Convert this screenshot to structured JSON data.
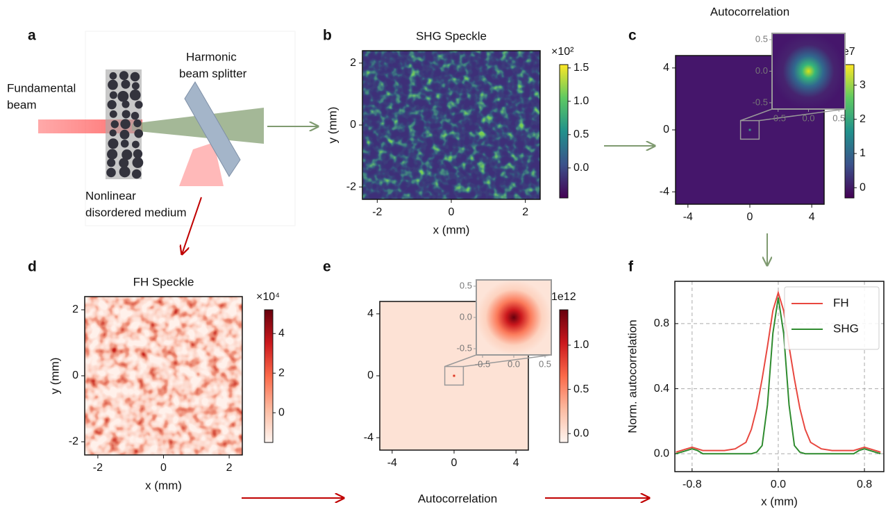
{
  "panel_labels": [
    "a",
    "b",
    "c",
    "d",
    "e",
    "f"
  ],
  "diagram": {
    "fundamental_beam": [
      "Fundamental",
      "beam"
    ],
    "beam_splitter": [
      "Harmonic",
      "beam splitter"
    ],
    "medium": [
      "Nonlinear",
      "disordered medium"
    ]
  },
  "arrow_label": "Autocorrelation",
  "chart_data": [
    {
      "type": "heatmap",
      "title": "SHG Speckle",
      "xlabel": "x (mm)",
      "ylabel": "y (mm)",
      "xlim": [
        -2.4,
        2.4
      ],
      "ylim": [
        -2.4,
        2.4
      ],
      "xticks": [
        -2,
        0,
        2
      ],
      "yticks": [
        -2,
        0,
        2
      ],
      "colormap": "viridis",
      "clim": [
        -0.45,
        1.55
      ],
      "cticks": [
        {
          "value": 0,
          "label": "0.0"
        },
        {
          "value": 0.5,
          "label": "0.5"
        },
        {
          "value": 1,
          "label": "1.0"
        },
        {
          "value": 1.5,
          "label": "1.5"
        }
      ],
      "offset_label": "×10²"
    },
    {
      "type": "heatmap",
      "title": "Autocorrelation",
      "xlim": [
        -4.8,
        4.8
      ],
      "ylim": [
        -4.8,
        4.8
      ],
      "xticks": [
        -4,
        0,
        4
      ],
      "yticks": [
        -4,
        0,
        4
      ],
      "colormap": "viridis",
      "clim": [
        -0.3,
        3.6
      ],
      "cticks": [
        0,
        1,
        2,
        3
      ],
      "offset_label": "1e7",
      "inset": {
        "xlim": [
          -0.6,
          0.6
        ],
        "ylim": [
          -0.6,
          0.6
        ],
        "xticks": [
          {
            "value": -0.5,
            "label": "-0.5"
          },
          {
            "value": 0,
            "label": "0.0"
          },
          {
            "value": 0.5,
            "label": "0.5"
          }
        ],
        "yticks": [
          {
            "value": -0.5,
            "label": "-0.5"
          },
          {
            "value": 0,
            "label": "0.0"
          },
          {
            "value": 0.5,
            "label": "0.5"
          }
        ]
      }
    },
    {
      "type": "heatmap",
      "title": "FH Speckle",
      "xlabel": "x (mm)",
      "ylabel": "y (mm)",
      "xlim": [
        -2.4,
        2.4
      ],
      "ylim": [
        -2.4,
        2.4
      ],
      "xticks": [
        -2,
        0,
        2
      ],
      "yticks": [
        -2,
        0,
        2
      ],
      "colormap": "Reds",
      "clim": [
        -1.5,
        5.2
      ],
      "cticks": [
        0,
        2,
        4
      ],
      "offset_label": "×10⁴"
    },
    {
      "type": "heatmap",
      "xlim": [
        -4.8,
        4.8
      ],
      "ylim": [
        -4.8,
        4.8
      ],
      "xticks": [
        -4,
        0,
        4
      ],
      "yticks": [
        -4,
        0,
        4
      ],
      "colormap": "Reds",
      "clim": [
        -0.1,
        1.4
      ],
      "cticks": [
        {
          "value": 0,
          "label": "0.0"
        },
        {
          "value": 0.5,
          "label": "0.5"
        },
        {
          "value": 1,
          "label": "1.0"
        }
      ],
      "offset_label": "1e12",
      "inset": {
        "xlim": [
          -0.6,
          0.6
        ],
        "ylim": [
          -0.6,
          0.6
        ],
        "xticks": [
          {
            "value": -0.5,
            "label": "-0.5"
          },
          {
            "value": 0,
            "label": "0.0"
          },
          {
            "value": 0.5,
            "label": "0.5"
          }
        ],
        "yticks": [
          {
            "value": -0.5,
            "label": "-0.5"
          },
          {
            "value": 0,
            "label": "0.0"
          },
          {
            "value": 0.5,
            "label": "0.5"
          }
        ]
      }
    },
    {
      "type": "line",
      "xlabel": "x (mm)",
      "ylabel": "Norm. autocorrelation",
      "xlim": [
        -0.96,
        0.98
      ],
      "ylim": [
        -0.11,
        1.06
      ],
      "xticks": [
        -0.8,
        {
          "value": 0,
          "label": "0.0"
        },
        0.8
      ],
      "yticks": [
        {
          "value": 0,
          "label": "0.0"
        },
        0.4,
        0.8
      ],
      "grid": true,
      "legend": "upper right",
      "x": [
        -0.95,
        -0.9,
        -0.85,
        -0.8,
        -0.75,
        -0.7,
        -0.6,
        -0.5,
        -0.4,
        -0.3,
        -0.25,
        -0.2,
        -0.15,
        -0.1,
        -0.05,
        0,
        0.05,
        0.1,
        0.15,
        0.2,
        0.25,
        0.3,
        0.4,
        0.5,
        0.6,
        0.7,
        0.75,
        0.8,
        0.85,
        0.9,
        0.95
      ],
      "series": [
        {
          "name": "FH",
          "color": "#e8473f",
          "values": [
            0.01,
            0.02,
            0.03,
            0.04,
            0.03,
            0.02,
            0.02,
            0.02,
            0.03,
            0.07,
            0.15,
            0.28,
            0.46,
            0.66,
            0.88,
            0.99,
            0.88,
            0.66,
            0.46,
            0.28,
            0.15,
            0.07,
            0.03,
            0.02,
            0.02,
            0.02,
            0.03,
            0.04,
            0.03,
            0.02,
            0.01
          ]
        },
        {
          "name": "SHG",
          "color": "#2e8b2e",
          "values": [
            0.0,
            0.01,
            0.02,
            0.03,
            0.02,
            0.0,
            0.0,
            0.0,
            0.0,
            0.0,
            0.0,
            0.01,
            0.05,
            0.3,
            0.74,
            0.96,
            0.74,
            0.3,
            0.05,
            0.01,
            0.0,
            0.0,
            0.0,
            0.0,
            0.0,
            0.0,
            0.02,
            0.03,
            0.02,
            0.01,
            0.0
          ]
        }
      ]
    }
  ]
}
